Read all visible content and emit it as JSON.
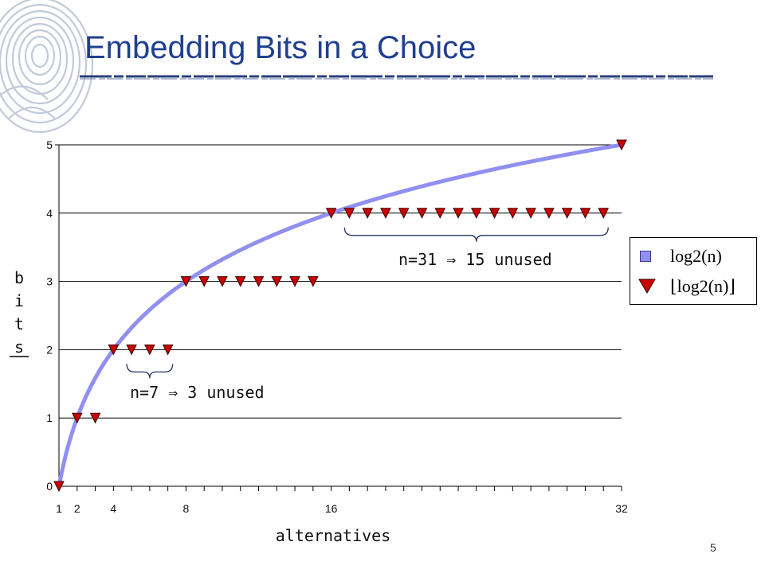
{
  "slide": {
    "title": "Embedding Bits in a Choice",
    "page_number": "5"
  },
  "chart_data": {
    "type": "line",
    "xlabel": "alternatives",
    "ylabel": "bits",
    "xlim": [
      1,
      32
    ],
    "ylim": [
      0,
      5
    ],
    "x_tick_labels": [
      "1",
      "2",
      "4",
      "8",
      "16",
      "32"
    ],
    "x_tick_values": [
      1,
      2,
      4,
      8,
      16,
      32
    ],
    "y_tick_labels": [
      "0",
      "1",
      "2",
      "3",
      "4",
      "5"
    ],
    "y_tick_values": [
      0,
      1,
      2,
      3,
      4,
      5
    ],
    "grid": "horizontal",
    "series": [
      {
        "name": "log2(n)",
        "style": "line",
        "color": "#9090f0",
        "x": [
          1,
          2,
          3,
          4,
          5,
          6,
          7,
          8,
          9,
          10,
          11,
          12,
          13,
          14,
          15,
          16,
          17,
          18,
          19,
          20,
          21,
          22,
          23,
          24,
          25,
          26,
          27,
          28,
          29,
          30,
          31,
          32
        ],
        "values": [
          0,
          1,
          1.585,
          2,
          2.322,
          2.585,
          2.807,
          3,
          3.17,
          3.322,
          3.459,
          3.585,
          3.7,
          3.807,
          3.907,
          4,
          4.087,
          4.17,
          4.248,
          4.322,
          4.392,
          4.459,
          4.524,
          4.585,
          4.644,
          4.7,
          4.755,
          4.807,
          4.858,
          4.907,
          4.954,
          5
        ]
      },
      {
        "name": "floor(log2(n))",
        "style": "marker-triangle-down",
        "color": "#cc0000",
        "x": [
          1,
          2,
          3,
          4,
          5,
          6,
          7,
          8,
          9,
          10,
          11,
          12,
          13,
          14,
          15,
          16,
          17,
          18,
          19,
          20,
          21,
          22,
          23,
          24,
          25,
          26,
          27,
          28,
          29,
          30,
          31,
          32
        ],
        "values": [
          0,
          1,
          1,
          2,
          2,
          2,
          2,
          3,
          3,
          3,
          3,
          3,
          3,
          3,
          3,
          4,
          4,
          4,
          4,
          4,
          4,
          4,
          4,
          4,
          4,
          4,
          4,
          4,
          4,
          4,
          4,
          5
        ]
      }
    ],
    "legend": {
      "placement": "right",
      "entries": [
        "log2(n)",
        "⌊log2(n)⌋"
      ]
    },
    "annotations": [
      {
        "text": "n=7 ⇒ 3 unused",
        "brace_from_x": 5,
        "brace_to_x": 7,
        "level": 2
      },
      {
        "text": "n=31 ⇒ 15 unused",
        "brace_from_x": 17,
        "brace_to_x": 31,
        "level": 4
      }
    ]
  }
}
